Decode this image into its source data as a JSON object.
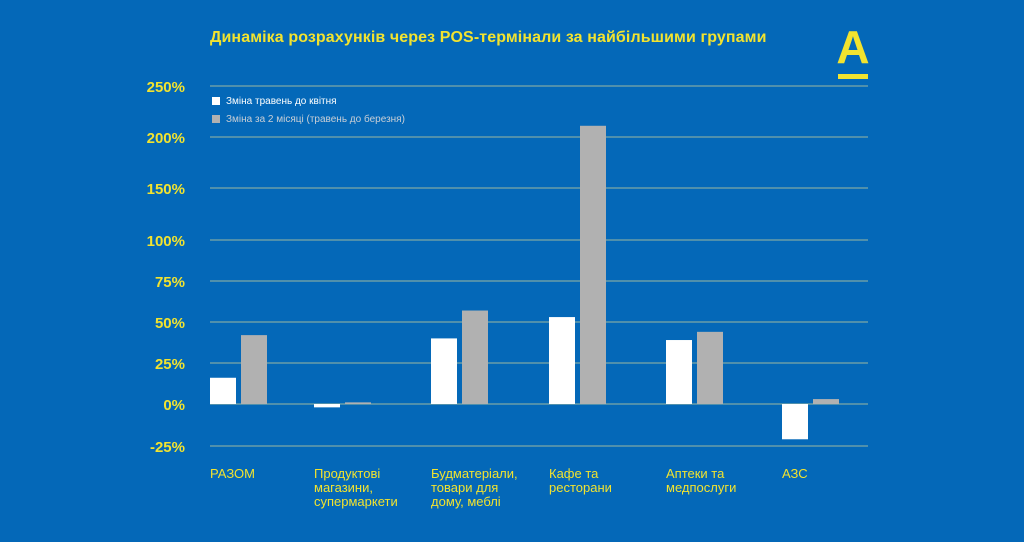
{
  "chart_data": {
    "type": "bar",
    "title": "Динаміка розрахунків через POS-термінали за найбільшими групами",
    "categories": [
      [
        "РАЗОМ"
      ],
      [
        "Продуктові",
        "магазини,",
        "супермаркети"
      ],
      [
        "Будматеріали,",
        "товари для",
        "дому, меблі"
      ],
      [
        "Кафе та",
        "ресторани"
      ],
      [
        "Аптеки та",
        "медпослуги"
      ],
      [
        "АЗС"
      ]
    ],
    "series": [
      {
        "name": "Зміна травень до квітня",
        "color": "#ffffff",
        "values": [
          16,
          -2,
          40,
          53,
          39,
          -21
        ]
      },
      {
        "name": "Зміна за 2 місяці (травень до березня)",
        "color": "#b1b1b1",
        "values": [
          42,
          1,
          57,
          211,
          44,
          3
        ]
      }
    ],
    "yticks": [
      -25,
      0,
      25,
      50,
      75,
      100,
      150,
      200,
      250
    ],
    "ytick_labels": [
      "-25%",
      "0%",
      "25%",
      "50%",
      "75%",
      "100%",
      "150%",
      "200%",
      "250%"
    ],
    "ylim": [
      -25,
      250
    ],
    "grid": true,
    "legend_position": "top-left"
  },
  "logo": {
    "letter": "А"
  },
  "colors": {
    "background": "#0468b8",
    "accent": "#f2e32f",
    "grid": "#9bb9a0"
  }
}
